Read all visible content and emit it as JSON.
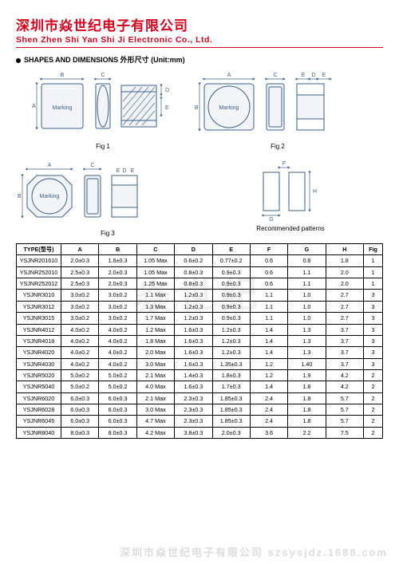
{
  "header": {
    "company_cn": "深圳市焱世纪电子有限公司",
    "company_en": "Shen Zhen Shi Yan Shi Ji Electronic Co., Ltd.",
    "accent_color": "#d6001c"
  },
  "section": {
    "title": "SHAPES AND DIMENSIONS 外形尺寸 (Unit:mm)"
  },
  "figures": {
    "fig1_label": "Fig 1",
    "fig2_label": "Fig 2",
    "fig3_label": "Fig 3",
    "recommended_label": "Recommended patterns",
    "marking_text": "Marking",
    "dim_labels": {
      "A": "A",
      "B": "B",
      "C": "C",
      "D": "D",
      "E": "E",
      "F": "F",
      "G": "G",
      "H": "H"
    },
    "line_color": "#3e5f8a",
    "fill_color": "#f2f4f7"
  },
  "watermark": {
    "text_main": "焱世纪",
    "text_footer": "深圳市焱世纪电子有限公司 szsysjdz.1688.com"
  },
  "table": {
    "columns": [
      "TYPE(型号)",
      "A",
      "B",
      "C",
      "D",
      "E",
      "F",
      "G",
      "H",
      "Fig"
    ],
    "rows": [
      [
        "YSJNR201610",
        "2.0±0.3",
        "1.6±0.3",
        "1.05 Max",
        "0.6±0.2",
        "0.77±0.2",
        "0.6",
        "0.8",
        "1.8",
        "1"
      ],
      [
        "YSJNR252010",
        "2.5±0.3",
        "2.0±0.3",
        "1.05 Max",
        "0.8±0.3",
        "0.9±0.3",
        "0.6",
        "1.1",
        "2.0",
        "1"
      ],
      [
        "YSJNR252012",
        "2.5±0.3",
        "2.0±0.3",
        "1.25 Max",
        "0.8±0.3",
        "0.9±0.3",
        "0.6",
        "1.1",
        "2.0",
        "1"
      ],
      [
        "YSJNR3010",
        "3.0±0.2",
        "3.0±0.2",
        "1.1 Max",
        "1.2±0.3",
        "0.9±0.3",
        "1.1",
        "1.0",
        "2.7",
        "3"
      ],
      [
        "YSJNR3012",
        "3.0±0.2",
        "3.0±0.2",
        "1.3 Max",
        "1.2±0.3",
        "0.9±0.3",
        "1.1",
        "1.0",
        "2.7",
        "3"
      ],
      [
        "YSJNR3015",
        "3.0±0.2",
        "3.0±0.2",
        "1.7 Max",
        "1.2±0.3",
        "0.9±0.3",
        "1.1",
        "1.0",
        "2.7",
        "3"
      ],
      [
        "YSJNR4012",
        "4.0±0.2",
        "4.0±0.2",
        "1.2 Max",
        "1.6±0.3",
        "1.2±0.3",
        "1.4",
        "1.3",
        "3.7",
        "3"
      ],
      [
        "YSJNR4018",
        "4.0±0.2",
        "4.0±0.2",
        "1.8 Max",
        "1.6±0.3",
        "1.2±0.3",
        "1.4",
        "1.3",
        "3.7",
        "3"
      ],
      [
        "YSJNR4020",
        "4.0±0.2",
        "4.0±0.2",
        "2.0 Max",
        "1.6±0.3",
        "1.2±0.3",
        "1.4",
        "1.3",
        "3.7",
        "3"
      ],
      [
        "YSJNR4030",
        "4.0±0.2",
        "4.0±0.2",
        "3.0 Max",
        "1.6±0.3",
        "1.35±0.3",
        "1.2",
        "1.40",
        "3.7",
        "3"
      ],
      [
        "YSJNR5020",
        "5.0±0.2",
        "5.0±0.2",
        "2.1 Max",
        "1.4±0.3",
        "1.8±0.3",
        "1.2",
        "1.9",
        "4.2",
        "2"
      ],
      [
        "YSJNR5040",
        "5.0±0.2",
        "5.0±0.2",
        "4.0 Max",
        "1.6±0.3",
        "1.7±0.3",
        "1.4",
        "1.8",
        "4.2",
        "2"
      ],
      [
        "YSJNR6020",
        "6.0±0.3",
        "6.0±0.3",
        "2.1 Max",
        "2.3±0.3",
        "1.85±0.3",
        "2.4",
        "1.8",
        "5.7",
        "2"
      ],
      [
        "YSJNR6028",
        "6.0±0.3",
        "6.0±0.3",
        "3.0 Max",
        "2.3±0.3",
        "1.85±0.3",
        "2.4",
        "1.8",
        "5.7",
        "2"
      ],
      [
        "YSJNR6045",
        "6.0±0.3",
        "6.0±0.3",
        "4.7 Max",
        "2.3±0.3",
        "1.85±0.3",
        "2.4",
        "1.8",
        "5.7",
        "2"
      ],
      [
        "YSJNR8040",
        "8.0±0.3",
        "8.0±0.3",
        "4.2 Max",
        "3.8±0.3",
        "2.0±0.3",
        "3.6",
        "2.2",
        "7.5",
        "2"
      ]
    ],
    "header_fontsize": 7.5,
    "cell_fontsize": 7.2,
    "border_color": "#000000"
  }
}
